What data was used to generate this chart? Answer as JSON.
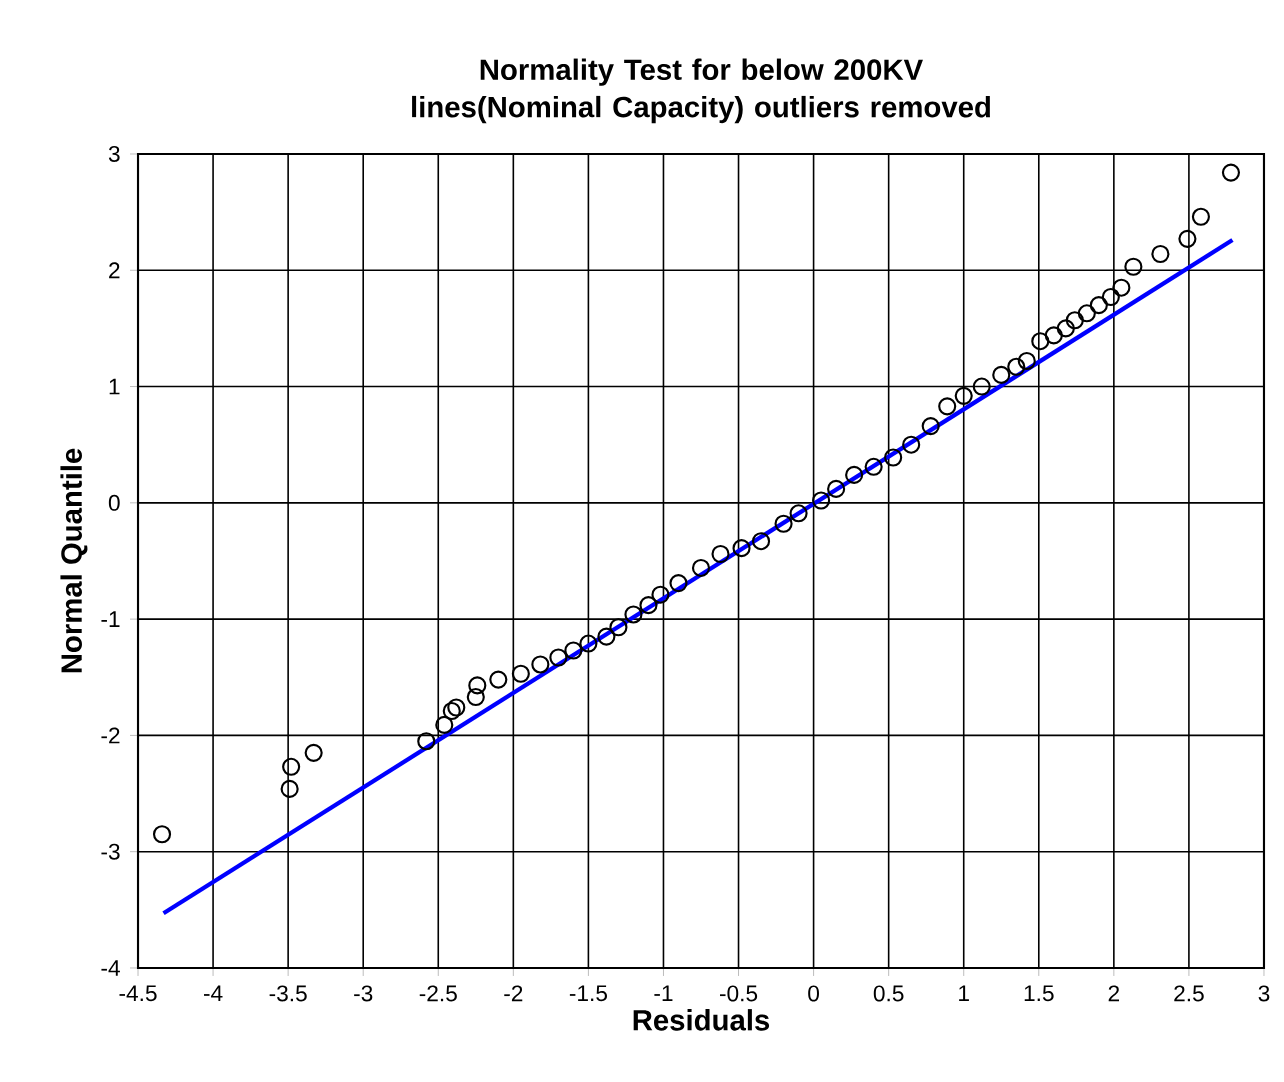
{
  "chart_data": {
    "type": "scatter",
    "title": "Normality Test for below 200KV lines(Nominal Capacity) outliers removed",
    "xlabel": "Residuals",
    "ylabel": "Normal Quantile",
    "xlim": [
      -4.5,
      3
    ],
    "ylim": [
      -4,
      3
    ],
    "xticks": [
      -4.5,
      -4,
      -3.5,
      -3,
      -2.5,
      -2,
      -1.5,
      -1,
      -0.5,
      0,
      0.5,
      1,
      1.5,
      2,
      2.5,
      3
    ],
    "yticks": [
      -4,
      -3,
      -2,
      -1,
      0,
      1,
      2,
      3
    ],
    "grid": true,
    "series": [
      {
        "color": "#000000",
        "marker": "circle",
        "x": [
          -4.34,
          -3.49,
          -3.48,
          -3.33,
          -2.58,
          -2.46,
          -2.41,
          -2.38,
          -2.25,
          -2.24,
          -2.1,
          -1.95,
          -1.82,
          -1.7,
          -1.6,
          -1.5,
          -1.38,
          -1.3,
          -1.2,
          -1.1,
          -1.02,
          -0.9,
          -0.75,
          -0.62,
          -0.48,
          -0.35,
          -0.2,
          -0.1,
          0.05,
          0.15,
          0.27,
          0.4,
          0.53,
          0.65,
          0.78,
          0.89,
          1.0,
          1.12,
          1.25,
          1.35,
          1.42,
          1.51,
          1.6,
          1.68,
          1.74,
          1.82,
          1.9,
          1.98,
          2.05,
          2.13,
          2.31,
          2.49,
          2.58,
          2.78
        ],
        "values": [
          -2.85,
          -2.46,
          -2.27,
          -2.15,
          -2.05,
          -1.91,
          -1.79,
          -1.76,
          -1.67,
          -1.57,
          -1.52,
          -1.47,
          -1.39,
          -1.33,
          -1.27,
          -1.21,
          -1.15,
          -1.07,
          -0.96,
          -0.88,
          -0.79,
          -0.69,
          -0.56,
          -0.44,
          -0.39,
          -0.33,
          -0.18,
          -0.09,
          0.02,
          0.12,
          0.24,
          0.31,
          0.39,
          0.5,
          0.66,
          0.83,
          0.92,
          1.0,
          1.1,
          1.17,
          1.22,
          1.39,
          1.44,
          1.5,
          1.57,
          1.63,
          1.7,
          1.77,
          1.85,
          2.03,
          2.14,
          2.27,
          2.46,
          2.84
        ]
      },
      {
        "type": "line",
        "color": "#0000ff",
        "marker": "none",
        "x": [
          -4.33,
          2.79
        ],
        "values": [
          -3.53,
          2.26
        ]
      }
    ]
  }
}
